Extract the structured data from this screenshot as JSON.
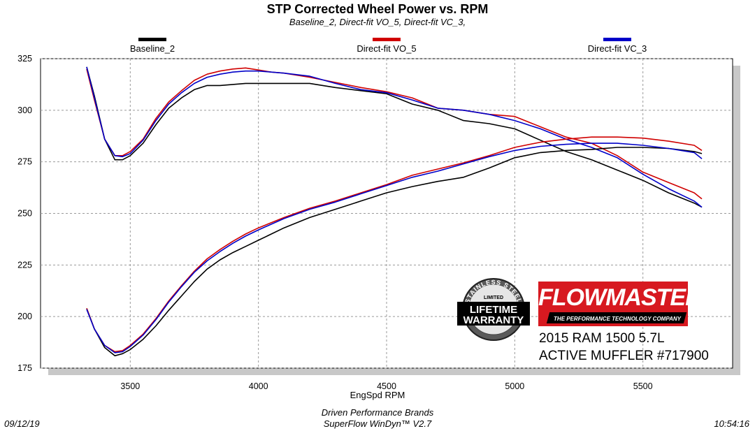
{
  "chart_data": {
    "type": "line",
    "title": "STP Corrected Wheel Power vs. RPM",
    "subtitle": "Baseline_2, Direct-fit VO_5, Direct-fit VC_3,",
    "xlabel": "EngSpd  RPM",
    "ylabel": "",
    "xlim": [
      3150,
      5850
    ],
    "ylim": [
      175,
      325
    ],
    "xticks": [
      3500,
      4000,
      4500,
      5000,
      5500
    ],
    "yticks": [
      175,
      200,
      225,
      250,
      275,
      300,
      325
    ],
    "grid": true,
    "legend_position": "top",
    "series": [
      {
        "name": "Baseline_2",
        "color": "#000000",
        "curve": "power",
        "x": [
          3330,
          3360,
          3400,
          3440,
          3470,
          3500,
          3550,
          3600,
          3650,
          3700,
          3750,
          3800,
          3850,
          3900,
          3950,
          4000,
          4050,
          4100,
          4200,
          4300,
          4400,
          4500,
          4600,
          4700,
          4800,
          4900,
          5000,
          5100,
          5200,
          5300,
          5400,
          5500,
          5600,
          5700,
          5730
        ],
        "y": [
          321,
          307,
          286,
          276,
          276,
          278,
          284,
          293,
          301,
          306,
          310,
          312,
          312,
          312.5,
          313,
          313,
          313,
          313,
          313,
          311,
          309.5,
          308,
          303,
          300,
          295,
          293.5,
          291,
          285.5,
          280,
          276,
          271,
          266,
          260,
          255,
          253
        ]
      },
      {
        "name": "Direct-fit VO_5",
        "color": "#d00000",
        "curve": "power",
        "x": [
          3330,
          3360,
          3400,
          3440,
          3470,
          3500,
          3550,
          3600,
          3650,
          3700,
          3750,
          3800,
          3850,
          3900,
          3950,
          4000,
          4050,
          4100,
          4200,
          4300,
          4400,
          4500,
          4600,
          4700,
          4800,
          4900,
          5000,
          5100,
          5200,
          5300,
          5400,
          5500,
          5600,
          5700,
          5730
        ],
        "y": [
          320,
          305,
          286,
          278,
          278,
          280,
          286,
          296,
          304,
          309.5,
          314.5,
          317.5,
          319,
          320,
          320.5,
          319.5,
          318.5,
          318,
          316,
          313.5,
          311,
          309,
          306,
          301,
          300,
          298,
          297,
          292,
          287,
          284,
          278,
          270,
          265,
          260,
          257
        ]
      },
      {
        "name": "Direct-fit VC_3",
        "color": "#0000c8",
        "curve": "power",
        "x": [
          3330,
          3360,
          3400,
          3440,
          3470,
          3500,
          3550,
          3600,
          3650,
          3700,
          3750,
          3800,
          3850,
          3900,
          3950,
          4000,
          4050,
          4100,
          4200,
          4300,
          4400,
          4500,
          4600,
          4700,
          4800,
          4900,
          5000,
          5100,
          5200,
          5300,
          5400,
          5500,
          5600,
          5700,
          5730
        ],
        "y": [
          321,
          306,
          286,
          278,
          277.5,
          279,
          285.5,
          295,
          303,
          308.5,
          313,
          316,
          317.5,
          318.5,
          319,
          319,
          318.5,
          318,
          316.5,
          313,
          310,
          308.5,
          305,
          301,
          300,
          298,
          295,
          291,
          286,
          282,
          277,
          269,
          262,
          256,
          253
        ]
      },
      {
        "name": "Baseline_2",
        "color": "#000000",
        "curve": "torque",
        "x": [
          3330,
          3360,
          3400,
          3440,
          3470,
          3500,
          3550,
          3600,
          3650,
          3700,
          3750,
          3800,
          3850,
          3900,
          3950,
          4000,
          4100,
          4200,
          4300,
          4400,
          4500,
          4600,
          4700,
          4800,
          4900,
          5000,
          5100,
          5200,
          5300,
          5400,
          5500,
          5600,
          5700,
          5730
        ],
        "y": [
          204,
          194,
          185,
          181,
          182,
          184,
          189,
          195.5,
          203,
          210,
          217,
          223,
          227.5,
          231,
          234,
          237,
          243,
          248,
          252,
          256,
          260,
          263,
          265.5,
          267.5,
          272,
          277,
          279.5,
          280.5,
          281,
          282,
          282,
          281.5,
          280,
          279
        ]
      },
      {
        "name": "Direct-fit VO_5",
        "color": "#d00000",
        "curve": "torque",
        "x": [
          3330,
          3360,
          3400,
          3440,
          3470,
          3500,
          3550,
          3600,
          3650,
          3700,
          3750,
          3800,
          3850,
          3900,
          3950,
          4000,
          4100,
          4200,
          4300,
          4400,
          4500,
          4600,
          4700,
          4800,
          4900,
          5000,
          5100,
          5200,
          5300,
          5400,
          5500,
          5600,
          5700,
          5730
        ],
        "y": [
          204,
          194,
          186,
          183,
          183.5,
          186,
          191.5,
          199,
          207.5,
          215,
          222,
          228,
          232.5,
          236.5,
          240,
          243,
          248,
          252.5,
          256,
          260,
          264,
          268.5,
          271.5,
          274.5,
          278,
          282,
          284.5,
          286,
          287,
          287,
          286.5,
          285,
          283,
          280.5
        ]
      },
      {
        "name": "Direct-fit VC_3",
        "color": "#0000c8",
        "curve": "torque",
        "x": [
          3330,
          3360,
          3400,
          3440,
          3470,
          3500,
          3550,
          3600,
          3650,
          3700,
          3750,
          3800,
          3850,
          3900,
          3950,
          4000,
          4100,
          4200,
          4300,
          4400,
          4500,
          4600,
          4700,
          4800,
          4900,
          5000,
          5100,
          5200,
          5300,
          5400,
          5500,
          5600,
          5700,
          5730
        ],
        "y": [
          203.5,
          194,
          186,
          182.5,
          183,
          185.5,
          191,
          198.5,
          207,
          214.5,
          221.5,
          227,
          231.5,
          235.5,
          239,
          242,
          247.5,
          252,
          255.5,
          259.5,
          263.5,
          267.5,
          270.5,
          274,
          277.5,
          280.5,
          282.5,
          283.5,
          284,
          284,
          283,
          281.5,
          279.5,
          276.5
        ]
      }
    ]
  },
  "legend": [
    {
      "label": "Baseline_2",
      "color": "#000000"
    },
    {
      "label": "Direct-fit VO_5",
      "color": "#d00000"
    },
    {
      "label": "Direct-fit VC_3",
      "color": "#0000c8"
    }
  ],
  "footer": {
    "line1": "Driven Performance Brands",
    "line2": "SuperFlow WinDyn™  V2.7",
    "date": "09/12/19",
    "time": "10:54:16"
  },
  "overlay": {
    "brand": "FLOWMASTER",
    "tagline": "THE PERFORMANCE TECHNOLOGY COMPANY",
    "vehicle_line1": "2015 RAM 1500 5.7L",
    "vehicle_line2": "ACTIVE MUFFLER #717900",
    "badge_top": "STAINLESS STEEL",
    "badge_middle": "LIMITED",
    "badge_main1": "LIFETIME",
    "badge_main2": "WARRANTY"
  }
}
